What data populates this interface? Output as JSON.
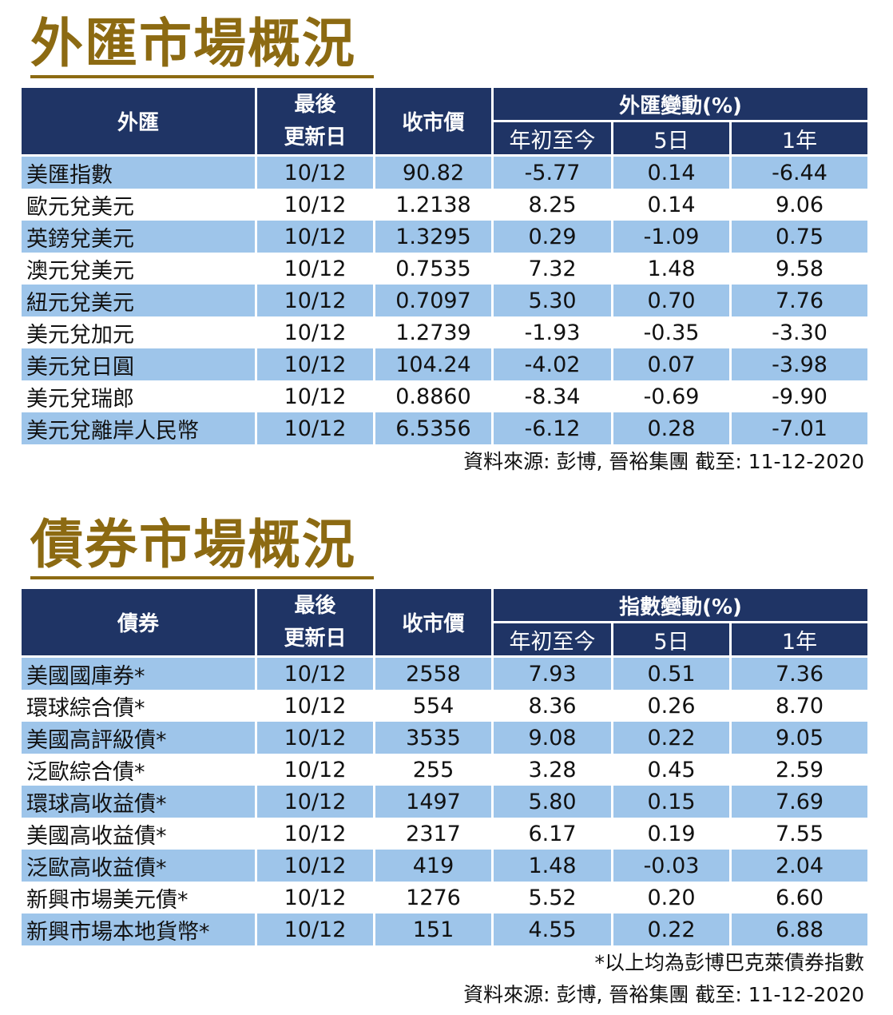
{
  "fx": {
    "title": "外匯市場概況",
    "headers": {
      "name": "外匯",
      "date": "最後\n更新日",
      "price": "收市價",
      "change": "外匯變動(%)",
      "ytd": "年初至今",
      "d5": "5日",
      "y1": "1年"
    },
    "rows": [
      {
        "name": "美匯指數",
        "date": "10/12",
        "price": "90.82",
        "ytd": "-5.77",
        "d5": "0.14",
        "y1": "-6.44"
      },
      {
        "name": "歐元兌美元",
        "date": "10/12",
        "price": "1.2138",
        "ytd": "8.25",
        "d5": "0.14",
        "y1": "9.06"
      },
      {
        "name": "英鎊兌美元",
        "date": "10/12",
        "price": "1.3295",
        "ytd": "0.29",
        "d5": "-1.09",
        "y1": "0.75"
      },
      {
        "name": "澳元兌美元",
        "date": "10/12",
        "price": "0.7535",
        "ytd": "7.32",
        "d5": "1.48",
        "y1": "9.58"
      },
      {
        "name": "紐元兌美元",
        "date": "10/12",
        "price": "0.7097",
        "ytd": "5.30",
        "d5": "0.70",
        "y1": "7.76"
      },
      {
        "name": "美元兌加元",
        "date": "10/12",
        "price": "1.2739",
        "ytd": "-1.93",
        "d5": "-0.35",
        "y1": "-3.30"
      },
      {
        "name": "美元兌日圓",
        "date": "10/12",
        "price": "104.24",
        "ytd": "-4.02",
        "d5": "0.07",
        "y1": "-3.98"
      },
      {
        "name": "美元兌瑞郎",
        "date": "10/12",
        "price": "0.8860",
        "ytd": "-8.34",
        "d5": "-0.69",
        "y1": "-9.90"
      },
      {
        "name": "美元兌離岸人民幣",
        "date": "10/12",
        "price": "6.5356",
        "ytd": "-6.12",
        "d5": "0.28",
        "y1": "-7.01"
      }
    ],
    "source": "資料來源: 彭博, 晉裕集團 截至:  11-12-2020"
  },
  "bond": {
    "title": "債券市場概況",
    "headers": {
      "name": "債券",
      "date": "最後\n更新日",
      "price": "收市價",
      "change": "指數變動(%)",
      "ytd": "年初至今",
      "d5": "5日",
      "y1": "1年"
    },
    "rows": [
      {
        "name": "美國國庫券*",
        "date": "10/12",
        "price": "2558",
        "ytd": "7.93",
        "d5": "0.51",
        "y1": "7.36"
      },
      {
        "name": "環球綜合債*",
        "date": "10/12",
        "price": "554",
        "ytd": "8.36",
        "d5": "0.26",
        "y1": "8.70"
      },
      {
        "name": "美國高評級債*",
        "date": "10/12",
        "price": "3535",
        "ytd": "9.08",
        "d5": "0.22",
        "y1": "9.05"
      },
      {
        "name": "泛歐綜合債*",
        "date": "10/12",
        "price": "255",
        "ytd": "3.28",
        "d5": "0.45",
        "y1": "2.59"
      },
      {
        "name": "環球高收益債*",
        "date": "10/12",
        "price": "1497",
        "ytd": "5.80",
        "d5": "0.15",
        "y1": "7.69"
      },
      {
        "name": "美國高收益債*",
        "date": "10/12",
        "price": "2317",
        "ytd": "6.17",
        "d5": "0.19",
        "y1": "7.55"
      },
      {
        "name": "泛歐高收益債*",
        "date": "10/12",
        "price": "419",
        "ytd": "1.48",
        "d5": "-0.03",
        "y1": "2.04"
      },
      {
        "name": "新興市場美元債*",
        "date": "10/12",
        "price": "1276",
        "ytd": "5.52",
        "d5": "0.20",
        "y1": "6.60"
      },
      {
        "name": "新興市場本地貨幣*",
        "date": "10/12",
        "price": "151",
        "ytd": "4.55",
        "d5": "0.22",
        "y1": "6.88"
      }
    ],
    "footnote": "*以上均為彭博巴克萊債券指數",
    "source": "資料來源: 彭博, 晉裕集團 截至:  11-12-2020"
  },
  "colors": {
    "title": "#8c6a12",
    "header_bg": "#1f3465",
    "row_highlight": "#9ec5ea"
  }
}
